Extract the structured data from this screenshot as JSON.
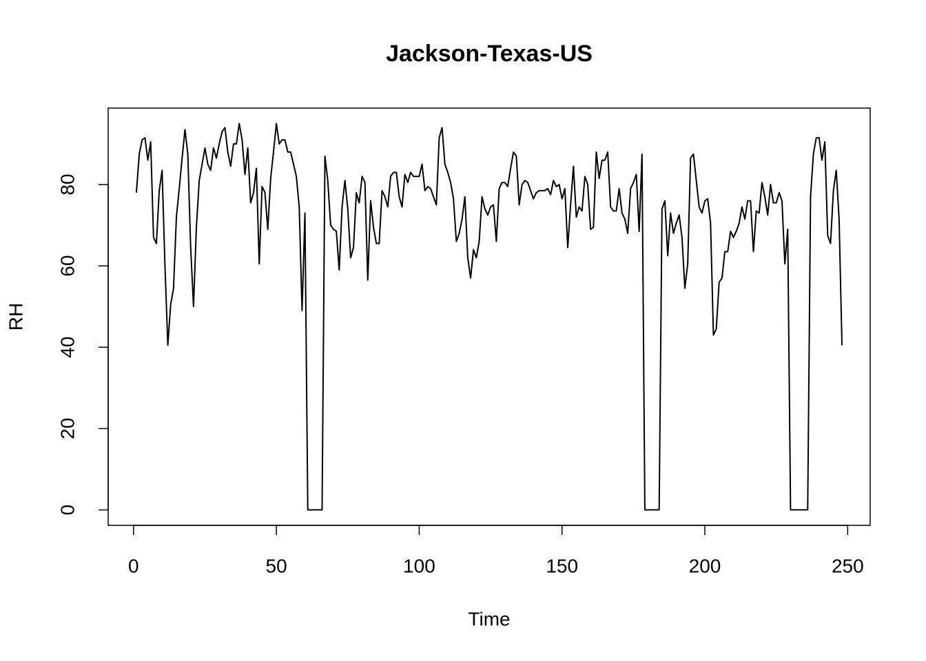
{
  "chart_data": {
    "type": "line",
    "title": "Jackson-Texas-US",
    "x_label": "Time",
    "y_label": "RH",
    "color": "#000000",
    "x": [
      1,
      2,
      3,
      4,
      5,
      6,
      7,
      8,
      9,
      10,
      11,
      12,
      13,
      14,
      15,
      16,
      17,
      18,
      19,
      20,
      21,
      22,
      23,
      24,
      25,
      26,
      27,
      28,
      29,
      30,
      31,
      32,
      33,
      34,
      35,
      36,
      37,
      38,
      39,
      40,
      41,
      42,
      43,
      44,
      45,
      46,
      47,
      48,
      49,
      50,
      51,
      52,
      53,
      54,
      55,
      56,
      57,
      58,
      59,
      60,
      61,
      62,
      63,
      64,
      65,
      66,
      67,
      68,
      69,
      70,
      71,
      72,
      73,
      74,
      75,
      76,
      77,
      78,
      79,
      80,
      81,
      82,
      83,
      84,
      85,
      86,
      87,
      88,
      89,
      90,
      91,
      92,
      93,
      94,
      95,
      96,
      97,
      98,
      99,
      100,
      101,
      102,
      103,
      104,
      105,
      106,
      107,
      108,
      109,
      110,
      111,
      112,
      113,
      114,
      115,
      116,
      117,
      118,
      119,
      120,
      121,
      122,
      123,
      124,
      125,
      126,
      127,
      128,
      129,
      130,
      131,
      132,
      133,
      134,
      135,
      136,
      137,
      138,
      139,
      140,
      141,
      142,
      143,
      144,
      145,
      146,
      147,
      148,
      149,
      150,
      151,
      152,
      153,
      154,
      155,
      156,
      157,
      158,
      159,
      160,
      161,
      162,
      163,
      164,
      165,
      166,
      167,
      168,
      169,
      170,
      171,
      172,
      173,
      174,
      175,
      176,
      177,
      178,
      179,
      180,
      181,
      182,
      183,
      184,
      185,
      186,
      187,
      188,
      189,
      190,
      191,
      192,
      193,
      194,
      195,
      196,
      197,
      198,
      199,
      200,
      201,
      202,
      203,
      204,
      205,
      206,
      207,
      208,
      209,
      210,
      211,
      212,
      213,
      214,
      215,
      216,
      217,
      218,
      219,
      220,
      221,
      222,
      223,
      224,
      225,
      226,
      227,
      228,
      229,
      230,
      231,
      232,
      233,
      234,
      235,
      236,
      237,
      238,
      239,
      240,
      241,
      242,
      243,
      244,
      245,
      246,
      247,
      248
    ],
    "values": [
      78,
      87.5,
      91,
      91.5,
      86,
      90.5,
      67,
      65.5,
      78.5,
      83.5,
      60,
      40.5,
      50.5,
      54.5,
      72,
      79,
      86.5,
      93.5,
      87.5,
      64.5,
      50,
      69.5,
      81,
      85,
      89,
      85,
      83.5,
      89,
      86.5,
      90,
      93,
      94,
      88,
      84.5,
      90,
      90,
      95,
      91,
      82.5,
      89,
      75.5,
      78,
      84,
      60.5,
      79.5,
      78,
      69,
      81.5,
      88,
      95,
      90,
      91,
      91,
      88,
      88,
      85,
      82,
      74.5,
      49,
      73,
      0,
      0,
      0,
      0,
      0,
      0,
      87,
      81,
      70,
      69,
      68.5,
      59,
      74.5,
      81,
      74,
      62,
      64.5,
      78,
      75.5,
      82,
      80.5,
      56.5,
      76,
      69.5,
      65.5,
      65.5,
      78.5,
      77,
      74.5,
      82,
      83,
      83,
      77,
      74.5,
      82.5,
      80.5,
      83,
      82,
      82,
      82,
      85,
      78.5,
      79.5,
      79,
      77,
      75,
      91.5,
      94,
      85,
      83,
      80.5,
      76.5,
      66,
      68,
      71.5,
      77,
      62,
      57,
      64,
      62,
      66,
      77,
      74,
      72.5,
      74.5,
      75,
      66,
      79,
      80.5,
      80.5,
      79.5,
      84,
      88,
      87,
      75,
      80,
      81,
      80.5,
      78.5,
      76.5,
      78,
      78.5,
      78.5,
      78.5,
      79,
      77.5,
      81,
      79.5,
      80,
      76.5,
      79,
      64.5,
      75,
      84.5,
      72,
      74.5,
      73.5,
      82,
      80,
      69,
      69.5,
      88,
      81.5,
      86,
      86,
      88,
      74.5,
      73.5,
      73.5,
      79,
      73,
      71.5,
      68,
      79,
      80.5,
      82.5,
      68.5,
      87.5,
      0,
      0,
      0,
      0,
      0,
      0,
      74,
      76,
      62.5,
      73,
      68,
      70.5,
      72.5,
      67,
      54.5,
      60.5,
      86.5,
      87.5,
      81,
      74.5,
      73,
      76,
      76.5,
      70.5,
      43,
      44.5,
      56,
      57,
      63.5,
      63.5,
      68.5,
      67,
      68.5,
      70.5,
      74.5,
      71.5,
      76,
      76,
      63.5,
      73.5,
      73,
      80.5,
      77,
      72.5,
      80,
      75.5,
      75.5,
      78,
      76,
      60.5,
      69,
      0,
      0,
      0,
      0,
      0,
      0,
      0,
      77,
      87.5,
      91.5,
      91.5,
      86,
      90.5,
      67.5,
      65.5,
      78.5,
      83.5,
      71.5,
      40.5
    ],
    "xlim": [
      -8.88,
      257.88
    ],
    "ylim": [
      -3.8,
      98.8
    ],
    "xticks": [
      0,
      50,
      100,
      150,
      200,
      250
    ],
    "yticks": [
      0,
      20,
      40,
      60,
      80
    ]
  }
}
